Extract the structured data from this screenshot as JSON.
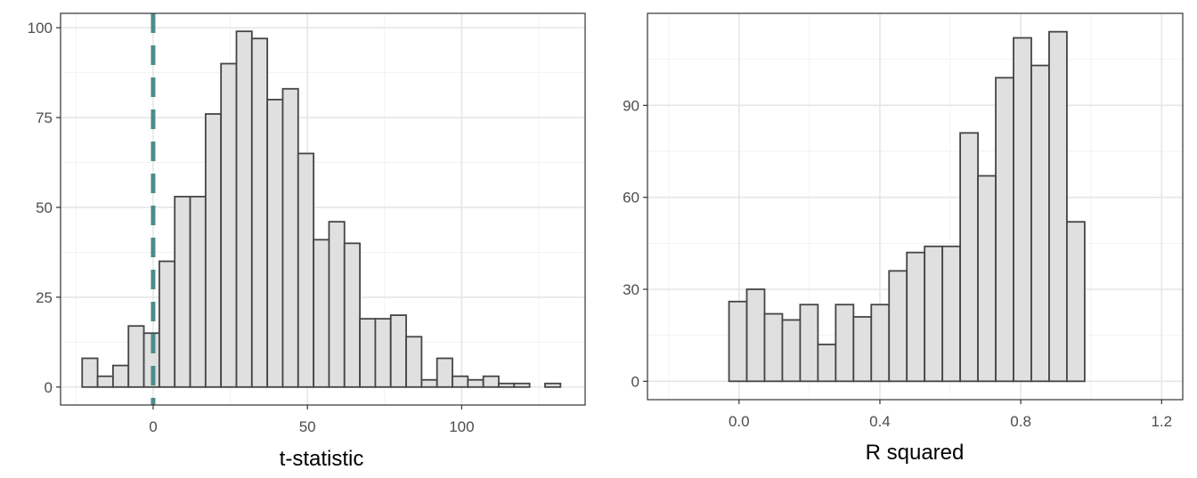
{
  "colors": {
    "bar_fill": "#e0e0e0",
    "bar_stroke": "#454545",
    "reference_line": "#4c8c8c",
    "grid_major": "#e6e6e6",
    "grid_minor": "#f2f2f2",
    "panel_border": "#333333"
  },
  "chart_data": [
    {
      "type": "bar",
      "subtype": "histogram",
      "title": "",
      "xlabel": "t-statistic",
      "ylabel": "",
      "bin_width": 5,
      "bin_starts": [
        -23,
        -18,
        -13,
        -8,
        -3,
        2,
        7,
        12,
        17,
        22,
        27,
        32,
        37,
        42,
        47,
        52,
        57,
        62,
        67,
        72,
        77,
        82,
        87,
        92,
        97,
        102,
        107,
        112,
        117,
        122,
        127
      ],
      "values": [
        8,
        3,
        6,
        17,
        15,
        35,
        53,
        53,
        76,
        90,
        99,
        97,
        80,
        83,
        65,
        41,
        46,
        40,
        19,
        19,
        20,
        14,
        2,
        8,
        3,
        2,
        3,
        1,
        1,
        0,
        1
      ],
      "xlim": [
        -30,
        140
      ],
      "ylim": [
        -5,
        104
      ],
      "xticks": [
        0,
        50,
        100
      ],
      "xtick_labels": [
        "0",
        "50",
        "100"
      ],
      "yticks": [
        0,
        25,
        50,
        75,
        100
      ],
      "ytick_labels": [
        "0",
        "25",
        "50",
        "75",
        "100"
      ],
      "reference_line": {
        "x": 0,
        "style": "dashed"
      },
      "grid": true,
      "legend": "none"
    },
    {
      "type": "bar",
      "subtype": "histogram",
      "title": "",
      "xlabel": "R squared",
      "ylabel": "",
      "bin_width": 0.0505,
      "bin_starts": [
        -0.18,
        -0.1295,
        -0.079,
        -0.0285,
        0.022,
        0.0725,
        0.123,
        0.1735,
        0.224,
        0.2745,
        0.325,
        0.3755,
        0.426,
        0.4765,
        0.527,
        0.5775,
        0.628,
        0.6785,
        0.729,
        0.7795,
        0.83,
        0.8805,
        0.931,
        0.9815,
        1.032,
        1.0825,
        1.133
      ],
      "values": [
        0,
        0,
        0,
        26,
        30,
        22,
        20,
        25,
        12,
        25,
        21,
        25,
        36,
        42,
        44,
        44,
        81,
        67,
        99,
        112,
        103,
        114,
        52,
        0,
        0,
        0,
        0
      ],
      "xlim": [
        -0.26,
        1.26
      ],
      "ylim": [
        -6,
        120
      ],
      "xticks": [
        0.0,
        0.4,
        0.8,
        1.2
      ],
      "xtick_labels": [
        "0.0",
        "0.4",
        "0.8",
        "1.2"
      ],
      "yticks": [
        0,
        30,
        60,
        90
      ],
      "ytick_labels": [
        "0",
        "30",
        "60",
        "90"
      ],
      "grid": true,
      "legend": "none"
    }
  ]
}
